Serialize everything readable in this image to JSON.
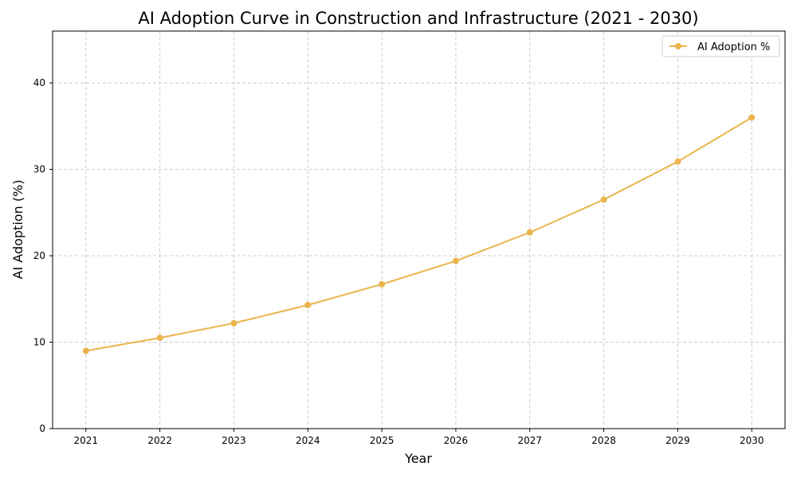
{
  "chart_data": {
    "type": "line",
    "title": "AI Adoption Curve in Construction and Infrastructure (2021 - 2030)",
    "xlabel": "Year",
    "ylabel": "AI Adoption (%)",
    "x": [
      2021,
      2022,
      2023,
      2024,
      2025,
      2026,
      2027,
      2028,
      2029,
      2030
    ],
    "x_tick_labels": [
      "2021",
      "2022",
      "2023",
      "2024",
      "2025",
      "2026",
      "2027",
      "2028",
      "2029",
      "2030"
    ],
    "y_ticks": [
      0,
      10,
      20,
      30,
      40
    ],
    "y_tick_labels": [
      "0",
      "10",
      "20",
      "30",
      "40"
    ],
    "ylim": [
      0,
      46
    ],
    "xlim": [
      2020.55,
      2030.45
    ],
    "grid": true,
    "legend_position": "top-right",
    "series": [
      {
        "name": "AI Adoption %",
        "color": "#eab54c",
        "marker": "circle",
        "values": [
          9.0,
          10.5,
          12.2,
          14.3,
          16.7,
          19.4,
          22.7,
          26.5,
          30.9,
          36.0
        ]
      }
    ]
  }
}
